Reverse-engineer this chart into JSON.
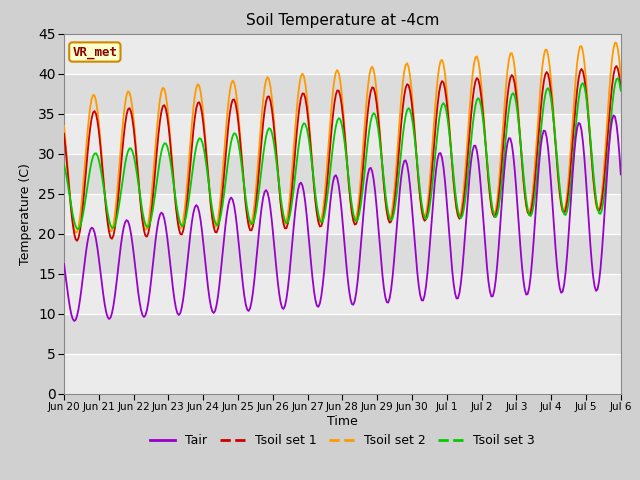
{
  "title": "Soil Temperature at -4cm",
  "xlabel": "Time",
  "ylabel": "Temperature (C)",
  "ylim": [
    0,
    45
  ],
  "yticks": [
    0,
    5,
    10,
    15,
    20,
    25,
    30,
    35,
    40,
    45
  ],
  "xtick_labels": [
    "Jun 20",
    "Jun 21",
    "Jun 22",
    "Jun 23",
    "Jun 24",
    "Jun 25",
    "Jun 26",
    "Jun 27",
    "Jun 28",
    "Jun 29",
    "Jun 30",
    "Jul 1",
    "Jul 2",
    "Jul 3",
    "Jul 4",
    "Jul 5",
    "Jul 6"
  ],
  "legend_labels": [
    "Tair",
    "Tsoil set 1",
    "Tsoil set 2",
    "Tsoil set 3"
  ],
  "colors": {
    "Tair": "#9900cc",
    "Tsoil1": "#cc0000",
    "Tsoil2": "#ff9900",
    "Tsoil3": "#00cc00"
  },
  "annotation": "VR_met",
  "fig_facecolor": "#d0d0d0",
  "ax_facecolor": "#e8e8e8",
  "band_colors": [
    "#e0e0e0",
    "#d0d0d0"
  ]
}
